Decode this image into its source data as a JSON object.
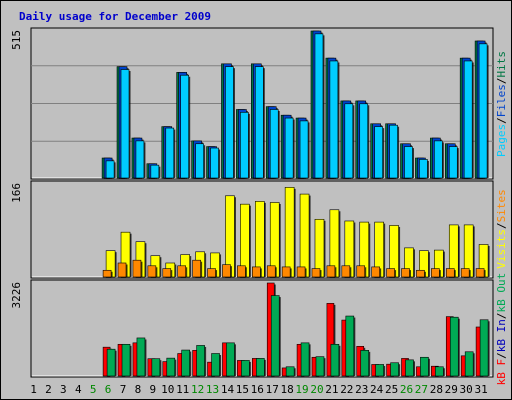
{
  "title": "Daily usage for December 2009",
  "colors": {
    "pages": "#00ccff",
    "files": "#0044cc",
    "hits": "#007744",
    "visits": "#ffff00",
    "sites": "#ff8800",
    "kb_out": "#00aa55",
    "kb_in": "#0000bb",
    "kb_f": "#ff0000",
    "weekend_label": "#008800",
    "weekday_label": "#000000",
    "panel_bg": "#c0c0c0",
    "title": "#0000cc"
  },
  "chart_data": [
    {
      "type": "bar",
      "panel": "top",
      "max_label": "515",
      "ymax": 515,
      "legend": [
        {
          "text": "Pages",
          "color_key": "pages"
        },
        {
          "text": "/",
          "color_key": "divider"
        },
        {
          "text": "Files",
          "color_key": "files"
        },
        {
          "text": "/",
          "color_key": "divider"
        },
        {
          "text": "Hits",
          "color_key": "hits"
        }
      ],
      "series": [
        {
          "name": "Hits",
          "color_key": "hits",
          "values": [
            0,
            0,
            0,
            0,
            0,
            70,
            390,
            140,
            50,
            180,
            370,
            130,
            110,
            400,
            240,
            400,
            250,
            220,
            210,
            515,
            420,
            270,
            270,
            190,
            190,
            120,
            70,
            140,
            120,
            420,
            480
          ]
        },
        {
          "name": "Files",
          "color_key": "files",
          "values": [
            0,
            0,
            0,
            0,
            0,
            70,
            390,
            140,
            50,
            180,
            370,
            130,
            110,
            400,
            240,
            400,
            250,
            220,
            210,
            515,
            420,
            270,
            270,
            190,
            190,
            120,
            70,
            140,
            120,
            420,
            480
          ]
        },
        {
          "name": "Pages",
          "color_key": "pages",
          "values": [
            0,
            0,
            0,
            0,
            0,
            60,
            380,
            130,
            45,
            175,
            360,
            120,
            105,
            390,
            230,
            390,
            240,
            210,
            200,
            505,
            410,
            260,
            260,
            180,
            185,
            110,
            65,
            130,
            110,
            410,
            470
          ]
        }
      ]
    },
    {
      "type": "bar",
      "panel": "middle",
      "max_label": "166",
      "ymax": 166,
      "legend": [
        {
          "text": "Visits",
          "color_key": "visits"
        },
        {
          "text": "/",
          "color_key": "divider"
        },
        {
          "text": "Sites",
          "color_key": "sites"
        }
      ],
      "series": [
        {
          "name": "Visits",
          "color_key": "visits",
          "values": [
            0,
            0,
            0,
            0,
            0,
            47,
            80,
            63,
            38,
            25,
            40,
            45,
            43,
            145,
            130,
            135,
            133,
            160,
            148,
            103,
            120,
            100,
            98,
            98,
            92,
            52,
            47,
            48,
            93,
            93,
            58
          ]
        },
        {
          "name": "Sites",
          "color_key": "sites",
          "values": [
            0,
            0,
            0,
            0,
            0,
            12,
            25,
            30,
            20,
            15,
            20,
            30,
            15,
            22,
            20,
            18,
            20,
            18,
            18,
            15,
            20,
            20,
            20,
            18,
            15,
            15,
            12,
            15,
            15,
            15,
            15
          ]
        }
      ]
    },
    {
      "type": "bar",
      "panel": "bottom",
      "max_label": "3226",
      "ymax": 3226,
      "legend": [
        {
          "text": "kB F",
          "color_key": "kb_f"
        },
        {
          "text": "/",
          "color_key": "divider"
        },
        {
          "text": "kB In",
          "color_key": "kb_in"
        },
        {
          "text": "/",
          "color_key": "divider"
        },
        {
          "text": "kB Out",
          "color_key": "kb_out"
        }
      ],
      "series": [
        {
          "name": "kB F",
          "color_key": "kb_f",
          "values": [
            0,
            0,
            0,
            0,
            0,
            1000,
            1100,
            1150,
            600,
            500,
            780,
            890,
            480,
            1150,
            540,
            610,
            3226,
            280,
            1100,
            650,
            2520,
            1940,
            1030,
            400,
            410,
            610,
            320,
            340,
            2060,
            700,
            1700
          ]
        },
        {
          "name": "kB Out",
          "color_key": "kb_out",
          "values": [
            0,
            0,
            0,
            0,
            0,
            930,
            1100,
            1320,
            600,
            620,
            900,
            1060,
            780,
            1150,
            540,
            610,
            2790,
            320,
            1150,
            670,
            1100,
            2080,
            890,
            400,
            460,
            560,
            650,
            320,
            2040,
            840,
            1950
          ]
        }
      ]
    }
  ],
  "x_axis": {
    "days": [
      "1",
      "2",
      "3",
      "4",
      "5",
      "6",
      "7",
      "8",
      "9",
      "10",
      "11",
      "12",
      "13",
      "14",
      "15",
      "16",
      "17",
      "18",
      "19",
      "20",
      "21",
      "22",
      "23",
      "24",
      "25",
      "26",
      "27",
      "28",
      "29",
      "30",
      "31"
    ],
    "weekend_days": [
      5,
      6,
      12,
      13,
      19,
      20,
      26,
      27
    ]
  }
}
